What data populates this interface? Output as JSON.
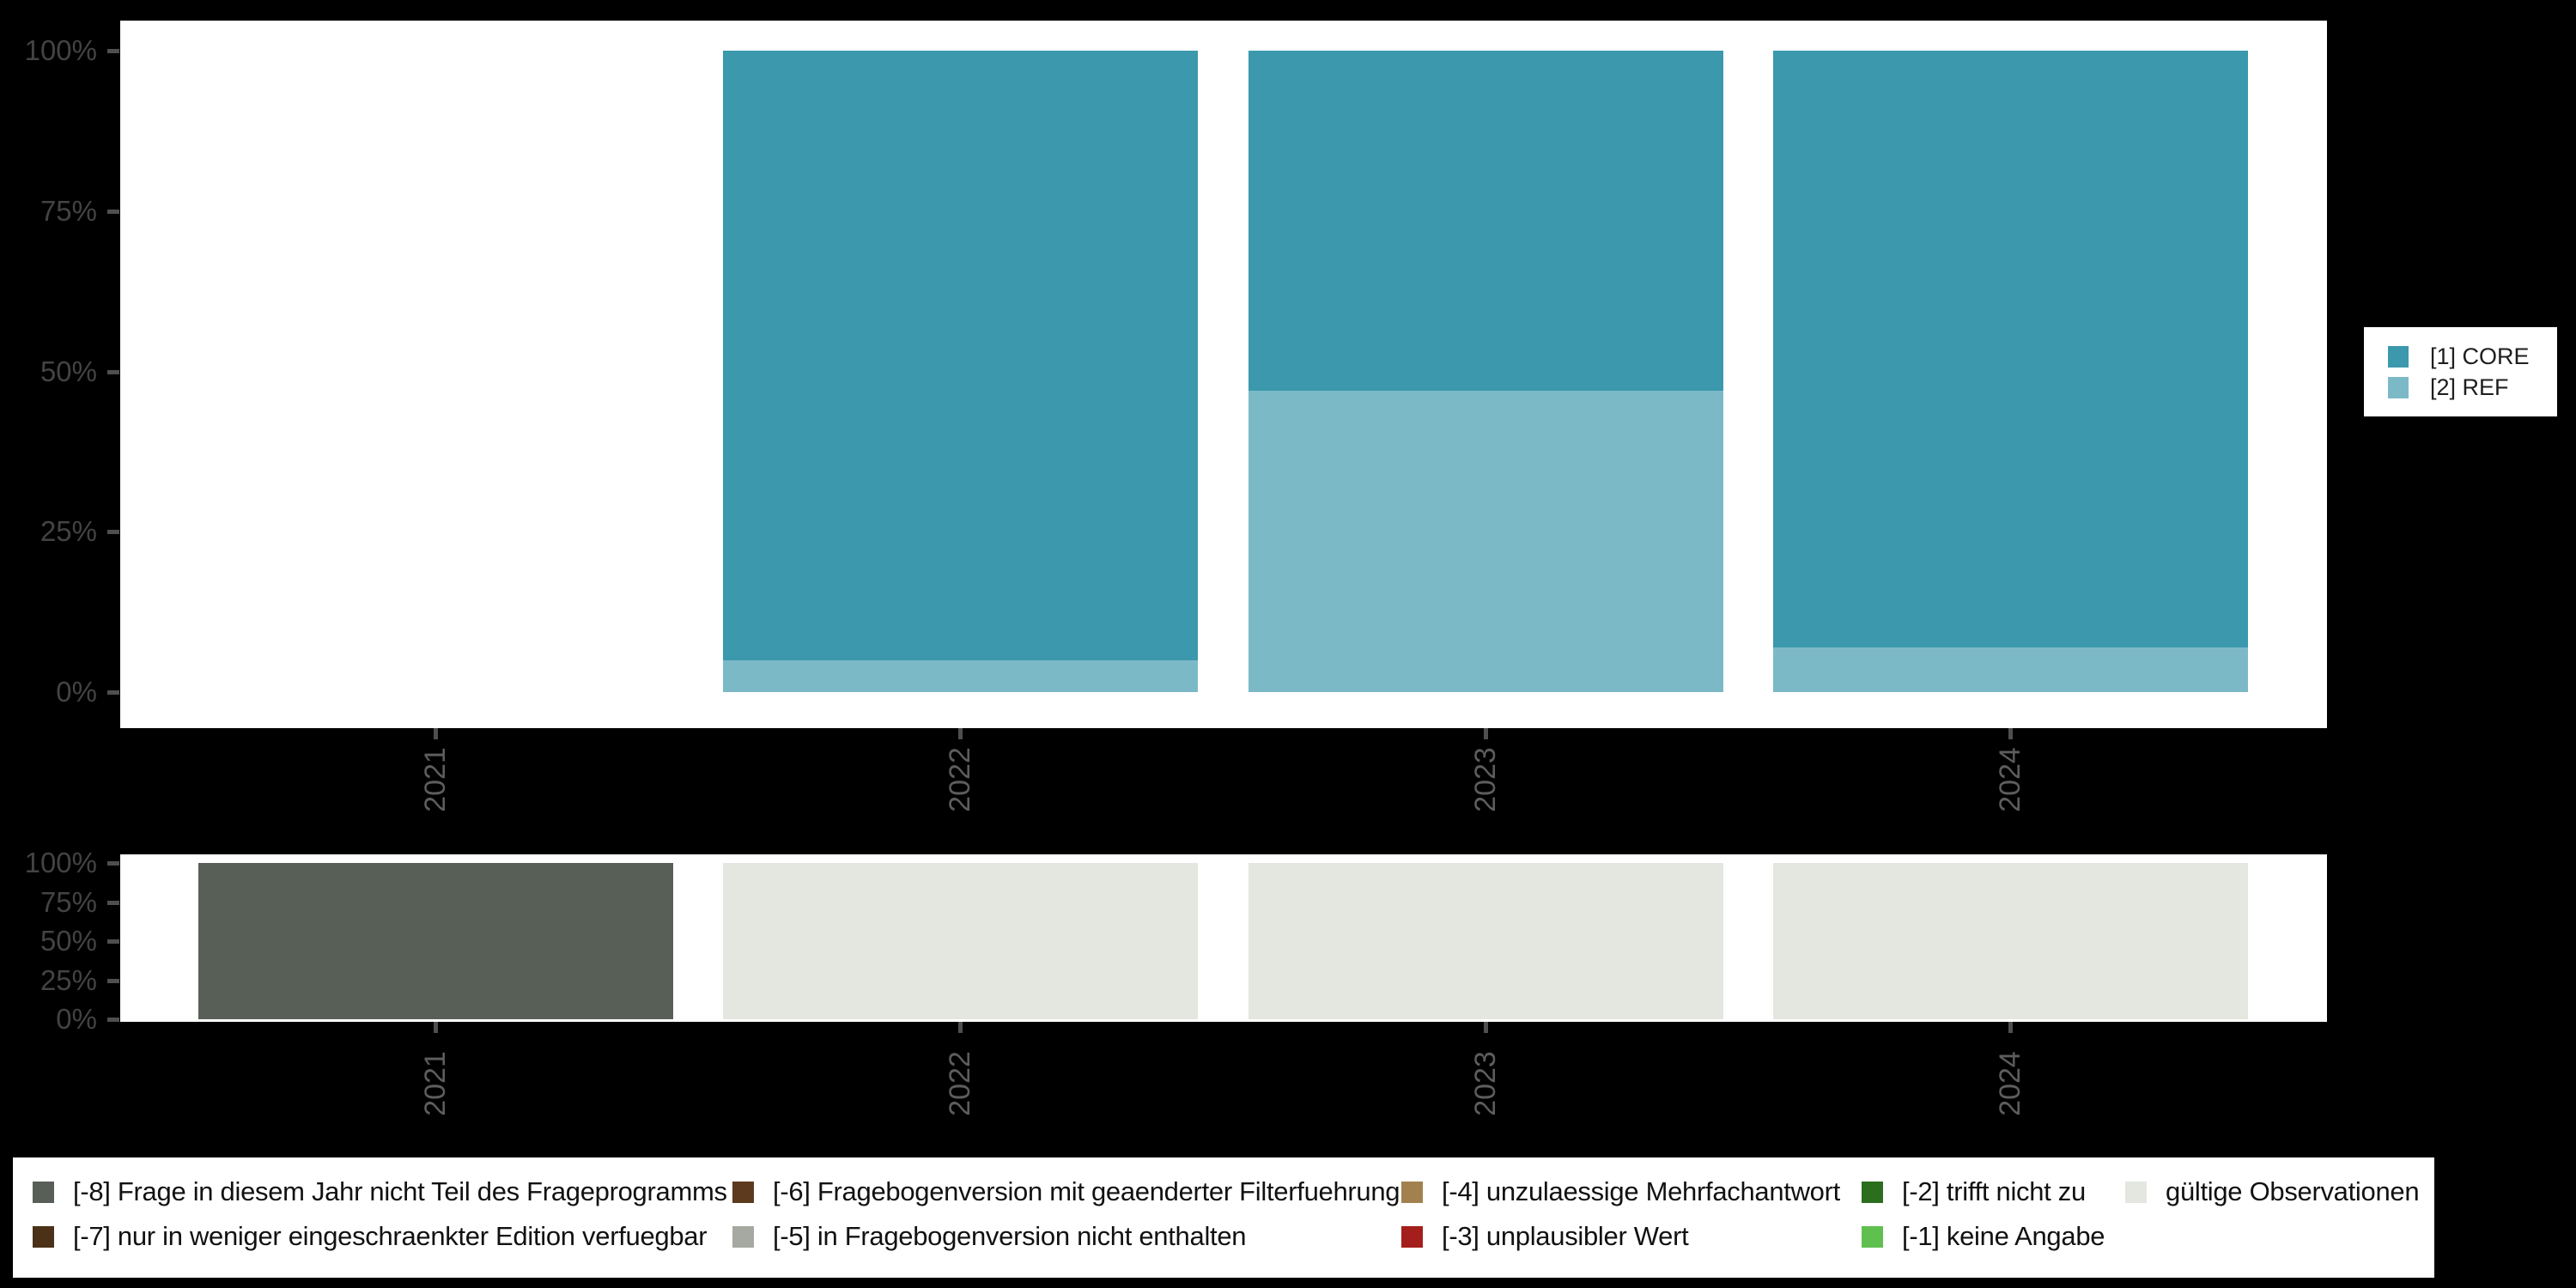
{
  "background_color": "#000000",
  "panel_color": "#ffffff",
  "axis": {
    "y_tick_labels": [
      "100%",
      "75%",
      "50%",
      "25%",
      "0%"
    ],
    "x_tick_labels": [
      "2021",
      "2022",
      "2023",
      "2024"
    ],
    "y_text_color": "#434343",
    "x_text_color": "#5d5d5d",
    "tick_color": "#4f4f4f"
  },
  "legend_core_ref": {
    "items": [
      {
        "label": "[1] CORE",
        "color": "#3b98ad"
      },
      {
        "label": "[2] REF",
        "color": "#7cb9c7"
      }
    ]
  },
  "legend_missing": {
    "items": [
      {
        "row": 0,
        "col": 0,
        "label": "[-8] Frage in diesem Jahr nicht Teil des Frageprogramms",
        "color": "#575f57"
      },
      {
        "row": 1,
        "col": 0,
        "label": "[-7] nur in weniger eingeschraenkter Edition verfuegbar",
        "color": "#4b3118"
      },
      {
        "row": 0,
        "col": 1,
        "label": "[-6] Fragebogenversion mit geaenderter Filterfuehrung",
        "color": "#5d3a1d"
      },
      {
        "row": 1,
        "col": 1,
        "label": "[-5] in Fragebogenversion nicht enthalten",
        "color": "#a6a9a1"
      },
      {
        "row": 0,
        "col": 2,
        "label": "[-4] unzulaessige Mehrfachantwort",
        "color": "#a3814f"
      },
      {
        "row": 1,
        "col": 2,
        "label": "[-3] unplausibler Wert",
        "color": "#a41e1c"
      },
      {
        "row": 0,
        "col": 3,
        "label": "[-2] trifft nicht zu",
        "color": "#2b6e1d"
      },
      {
        "row": 1,
        "col": 3,
        "label": "[-1] keine Angabe",
        "color": "#5fc04f"
      },
      {
        "row": 0,
        "col": 4,
        "label": "gültige Observationen",
        "color": "#e3e7df"
      }
    ]
  },
  "chart_data": [
    {
      "type": "bar",
      "stacked": true,
      "percent": true,
      "title": "",
      "categories": [
        "2021",
        "2022",
        "2023",
        "2024"
      ],
      "series": [
        {
          "name": "[1] CORE",
          "color": "#3b98ad",
          "values": [
            null,
            95,
            53,
            93
          ]
        },
        {
          "name": "[2] REF",
          "color": "#7cb9c7",
          "values": [
            null,
            5,
            47,
            7
          ]
        }
      ],
      "stack_order": "last series at bottom",
      "xlabel": "",
      "ylabel": "",
      "ylim": [
        0,
        100
      ],
      "yticks_percent": [
        0,
        25,
        50,
        75,
        100
      ],
      "grid": false,
      "legend_position": "right"
    },
    {
      "type": "bar",
      "stacked": true,
      "percent": true,
      "title": "",
      "categories": [
        "2021",
        "2022",
        "2023",
        "2024"
      ],
      "series": [
        {
          "name": "[-8] Frage in diesem Jahr nicht Teil des Frageprogramms",
          "color": "#575f57",
          "values": [
            100,
            0,
            0,
            0
          ]
        },
        {
          "name": "gültige Observationen",
          "color": "#e3e7df",
          "values": [
            0,
            100,
            100,
            100
          ]
        }
      ],
      "stack_order": "last series at bottom",
      "xlabel": "",
      "ylabel": "",
      "ylim": [
        0,
        100
      ],
      "yticks_percent": [
        0,
        25,
        50,
        75,
        100
      ],
      "grid": false,
      "legend_position": "bottom"
    }
  ]
}
